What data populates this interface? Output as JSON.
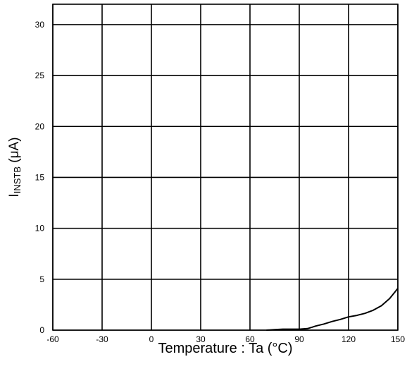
{
  "chart_data": {
    "type": "line",
    "xlabel": "Temperature : Ta (°C)",
    "ylabel_main": "I",
    "ylabel_sub": "INSTB",
    "ylabel_unit": " (μA)",
    "xlim": [
      -60,
      150
    ],
    "ylim": [
      0,
      32
    ],
    "xticks": [
      -60,
      -30,
      0,
      30,
      60,
      90,
      120,
      150
    ],
    "yticks": [
      0,
      5,
      10,
      15,
      20,
      25,
      30
    ],
    "grid": true,
    "series": [
      {
        "x": [
          70,
          75,
          80,
          85,
          90,
          95,
          98,
          100,
          105,
          110,
          115,
          120,
          125,
          130,
          135,
          140,
          145,
          148,
          150
        ],
        "y": [
          0,
          0.05,
          0.1,
          0.1,
          0.1,
          0.15,
          0.3,
          0.4,
          0.6,
          0.85,
          1.05,
          1.3,
          1.45,
          1.65,
          1.95,
          2.4,
          3.1,
          3.7,
          4.1
        ]
      }
    ]
  }
}
